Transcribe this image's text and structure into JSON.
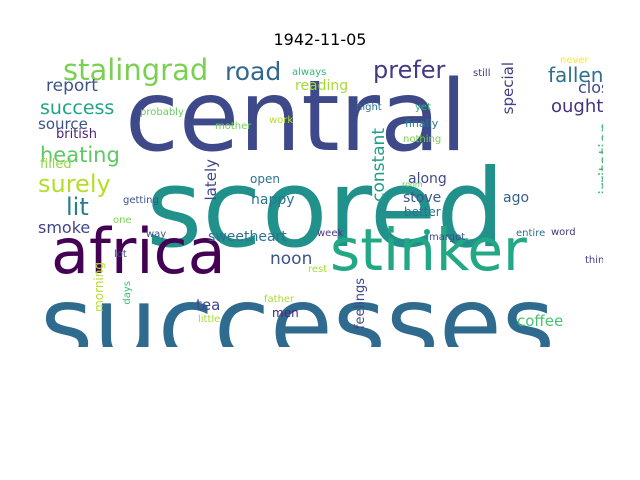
{
  "title": "1942-11-05",
  "words": [
    {
      "text": "successes",
      "color": "#2f6b8e",
      "orientation": "horizontal"
    },
    {
      "text": "scored",
      "color": "#21918c",
      "orientation": "horizontal"
    },
    {
      "text": "central",
      "color": "#3e4989",
      "orientation": "horizontal"
    },
    {
      "text": "africa",
      "color": "#440154",
      "orientation": "horizontal"
    },
    {
      "text": "stinker",
      "color": "#22a884",
      "orientation": "horizontal"
    },
    {
      "text": "stalingrad",
      "color": "#7ad151",
      "orientation": "horizontal"
    },
    {
      "text": "road",
      "color": "#31688e",
      "orientation": "horizontal"
    },
    {
      "text": "prefer",
      "color": "#443a83",
      "orientation": "horizontal"
    },
    {
      "text": "report",
      "color": "#3b528b",
      "orientation": "horizontal"
    },
    {
      "text": "success",
      "color": "#20a486",
      "orientation": "horizontal"
    },
    {
      "text": "source",
      "color": "#3b528b",
      "orientation": "horizontal"
    },
    {
      "text": "british",
      "color": "#482677",
      "orientation": "horizontal"
    },
    {
      "text": "heating",
      "color": "#5ec962",
      "orientation": "horizontal"
    },
    {
      "text": "filled",
      "color": "#8fd744",
      "orientation": "horizontal"
    },
    {
      "text": "surely",
      "color": "#b5de2b",
      "orientation": "horizontal"
    },
    {
      "text": "lit",
      "color": "#287c8e",
      "orientation": "horizontal"
    },
    {
      "text": "smoke",
      "color": "#404688",
      "orientation": "horizontal"
    },
    {
      "text": "fallen",
      "color": "#2c728e",
      "orientation": "horizontal"
    },
    {
      "text": "close",
      "color": "#3f4788",
      "orientation": "horizontal"
    },
    {
      "text": "ought",
      "color": "#46327e",
      "orientation": "horizontal"
    },
    {
      "text": "special",
      "color": "#433e85",
      "orientation": "vertical"
    },
    {
      "text": "irritation",
      "color": "#3dbc74",
      "orientation": "vertical"
    },
    {
      "text": "constant",
      "color": "#1f9e89",
      "orientation": "vertical"
    },
    {
      "text": "lately",
      "color": "#3f4788",
      "orientation": "vertical"
    },
    {
      "text": "reading",
      "color": "#a5db36",
      "orientation": "horizontal"
    },
    {
      "text": "always",
      "color": "#35b779",
      "orientation": "horizontal"
    },
    {
      "text": "probably",
      "color": "#67cc5c",
      "orientation": "horizontal"
    },
    {
      "text": "mother",
      "color": "#6ece58",
      "orientation": "horizontal"
    },
    {
      "text": "work",
      "color": "#b5de2b",
      "orientation": "horizontal"
    },
    {
      "text": "night",
      "color": "#2d718e",
      "orientation": "horizontal"
    },
    {
      "text": "yet",
      "color": "#31b57b",
      "orientation": "horizontal"
    },
    {
      "text": "finally",
      "color": "#2a788e",
      "orientation": "horizontal"
    },
    {
      "text": "nothing",
      "color": "#7ad151",
      "orientation": "horizontal"
    },
    {
      "text": "still",
      "color": "#453781",
      "orientation": "horizontal"
    },
    {
      "text": "never",
      "color": "#fde725",
      "orientation": "horizontal"
    },
    {
      "text": "open",
      "color": "#2c728e",
      "orientation": "horizontal"
    },
    {
      "text": "happy",
      "color": "#2a788e",
      "orientation": "horizontal"
    },
    {
      "text": "along",
      "color": "#3e4a89",
      "orientation": "horizontal"
    },
    {
      "text": "room",
      "color": "#5ec962",
      "orientation": "horizontal"
    },
    {
      "text": "stove",
      "color": "#39568c",
      "orientation": "horizontal"
    },
    {
      "text": "ago",
      "color": "#34618d",
      "orientation": "horizontal"
    },
    {
      "text": "better",
      "color": "#2c728e",
      "orientation": "horizontal"
    },
    {
      "text": "sweetheart",
      "color": "#2d708e",
      "orientation": "horizontal"
    },
    {
      "text": "noon",
      "color": "#3b528b",
      "orientation": "horizontal"
    },
    {
      "text": "week",
      "color": "#453781",
      "orientation": "horizontal"
    },
    {
      "text": "margot",
      "color": "#3e4989",
      "orientation": "horizontal"
    },
    {
      "text": "entire",
      "color": "#2e6e8e",
      "orientation": "horizontal"
    },
    {
      "text": "word",
      "color": "#453781",
      "orientation": "horizontal"
    },
    {
      "text": "things",
      "color": "#453781",
      "orientation": "horizontal"
    },
    {
      "text": "getting",
      "color": "#3b528b",
      "orientation": "horizontal"
    },
    {
      "text": "one",
      "color": "#7ad151",
      "orientation": "horizontal"
    },
    {
      "text": "way",
      "color": "#3b528b",
      "orientation": "horizontal"
    },
    {
      "text": "lot",
      "color": "#39568c",
      "orientation": "horizontal"
    },
    {
      "text": "days",
      "color": "#3dbc74",
      "orientation": "vertical"
    },
    {
      "text": "morning",
      "color": "#b5de2b",
      "orientation": "vertical"
    },
    {
      "text": "tea",
      "color": "#3e4989",
      "orientation": "horizontal"
    },
    {
      "text": "men",
      "color": "#482677",
      "orientation": "horizontal"
    },
    {
      "text": "father",
      "color": "#a5db36",
      "orientation": "horizontal"
    },
    {
      "text": "little",
      "color": "#a5db36",
      "orientation": "horizontal"
    },
    {
      "text": "feelings",
      "color": "#3e4989",
      "orientation": "vertical"
    },
    {
      "text": "rest",
      "color": "#a5db36",
      "orientation": "horizontal"
    },
    {
      "text": "coffee",
      "color": "#4ac16d",
      "orientation": "horizontal"
    }
  ]
}
